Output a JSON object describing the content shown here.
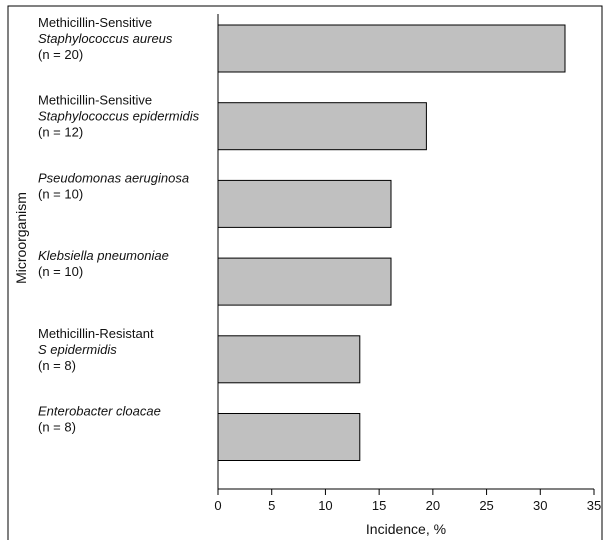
{
  "chart_data": {
    "type": "bar",
    "orientation": "horizontal",
    "categories": [
      {
        "lines": [
          {
            "text": "Methicillin-Sensitive",
            "italic": false
          },
          {
            "text": "Staphylococcus aureus",
            "italic": true
          },
          {
            "text": "(n = 20)",
            "italic": false
          }
        ]
      },
      {
        "lines": [
          {
            "text": "Methicillin-Sensitive",
            "italic": false
          },
          {
            "text": "Staphylococcus epidermidis",
            "italic": true
          },
          {
            "text": "(n = 12)",
            "italic": false
          }
        ]
      },
      {
        "lines": [
          {
            "text": "Pseudomonas aeruginosa",
            "italic": true
          },
          {
            "text": "(n = 10)",
            "italic": false
          }
        ]
      },
      {
        "lines": [
          {
            "text": "Klebsiella pneumoniae",
            "italic": true
          },
          {
            "text": "(n = 10)",
            "italic": false
          }
        ]
      },
      {
        "lines": [
          {
            "text": "Methicillin-Resistant",
            "italic": false
          },
          {
            "text": "S epidermidis",
            "italic": true
          },
          {
            "text": "(n = 8)",
            "italic": false
          }
        ]
      },
      {
        "lines": [
          {
            "text": "Enterobacter cloacae",
            "italic": true
          },
          {
            "text": "(n = 8)",
            "italic": false
          }
        ]
      }
    ],
    "values": [
      32.3,
      19.4,
      16.1,
      16.1,
      13.2,
      13.2
    ],
    "xlabel": "Incidence, %",
    "ylabel": "Microorganism",
    "xlim": [
      0,
      35
    ],
    "xticks": [
      0,
      5,
      10,
      15,
      20,
      25,
      30,
      35
    ],
    "grid": false,
    "colors": {
      "bar_fill": "#c0c0c0",
      "bar_stroke": "#000000",
      "frame": "#000000"
    }
  }
}
